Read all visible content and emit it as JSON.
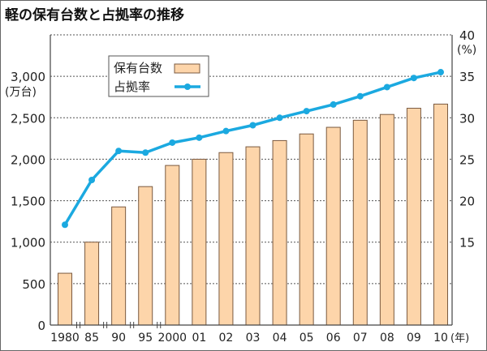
{
  "chart_data": {
    "type": "bar+line",
    "title": "軽の保有台数と占拠率の推移",
    "categories": [
      "1980",
      "85",
      "90",
      "95",
      "2000",
      "01",
      "02",
      "03",
      "04",
      "05",
      "06",
      "07",
      "08",
      "09",
      "10"
    ],
    "xlabel_unit": "(年)",
    "series": [
      {
        "name": "保有台数",
        "type": "bar",
        "axis": "left",
        "color": "#fdd5aa",
        "values": [
          625,
          1000,
          1425,
          1670,
          1925,
          2000,
          2080,
          2150,
          2225,
          2305,
          2385,
          2470,
          2540,
          2615,
          2665
        ]
      },
      {
        "name": "占拠率",
        "type": "line",
        "axis": "right",
        "color": "#1ba9e0",
        "values": [
          17.1,
          22.5,
          26.0,
          25.8,
          27.0,
          27.6,
          28.4,
          29.1,
          30.0,
          30.8,
          31.6,
          32.6,
          33.7,
          34.8,
          35.5
        ]
      }
    ],
    "left_axis": {
      "unit": "(万台)",
      "range": [
        0,
        3500
      ],
      "ticks": [
        0,
        500,
        1000,
        1500,
        2000,
        2500,
        3000
      ],
      "tick_labels": [
        "0",
        "500",
        "1,000",
        "1,500",
        "2,000",
        "2,500",
        "3,000"
      ]
    },
    "right_axis": {
      "unit": "(%)",
      "range": [
        5,
        40
      ],
      "ticks": [
        15,
        20,
        25,
        30,
        35,
        40
      ],
      "tick_labels": [
        "15",
        "20",
        "25",
        "30",
        "35",
        "40"
      ]
    },
    "grid": true,
    "legend": "top-left"
  }
}
